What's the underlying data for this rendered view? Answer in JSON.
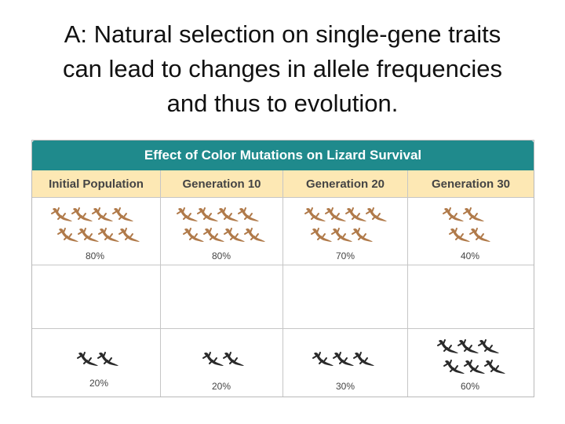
{
  "slide": {
    "title_lines": [
      "A: Natural selection on single-gene traits",
      "can lead to changes in allele frequencies",
      "and thus to evolution."
    ]
  },
  "table": {
    "title": "Effect of Color Mutations on Lizard Survival",
    "columns": [
      "Initial Population",
      "Generation 10",
      "Generation 20",
      "Generation 30"
    ],
    "colors": {
      "header_bg": "#1f8a8c",
      "subheader_bg": "#fde8b4",
      "brown_lizard": "#b07a4a",
      "black_lizard": "#2a2a2a"
    },
    "brown_row": {
      "lizard_counts": [
        8,
        8,
        7,
        4
      ],
      "percentages": [
        "80%",
        "80%",
        "70%",
        "40%"
      ]
    },
    "black_row": {
      "lizard_counts": [
        2,
        2,
        3,
        6
      ],
      "percentages": [
        "20%",
        "20%",
        "30%",
        "60%"
      ]
    }
  }
}
